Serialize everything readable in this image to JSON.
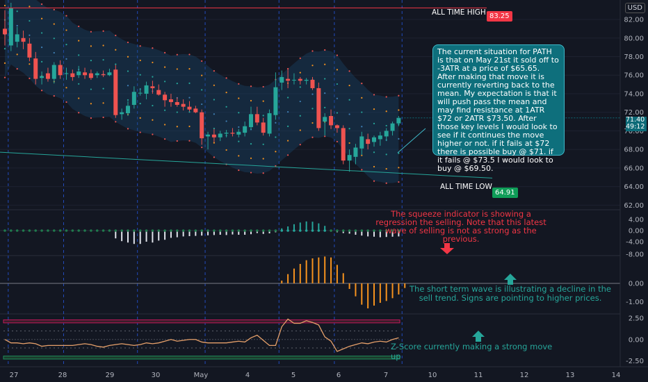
{
  "currency": "USD",
  "all_time_high": {
    "label": "ALL TIME HIGH",
    "value": "83.25"
  },
  "all_time_low": {
    "label": "ALL TIME LOW",
    "value": "64.91"
  },
  "last_price": {
    "price": "71.40",
    "countdown": "49:12"
  },
  "note": "The current situation for PATH is that on May 21st it sold off to -3ATR at a price of $65.65. After making that move it is currently reverting back to the mean. My expectation is that it will push pass the mean and may find resistance at 1ATR $72 or 2ATR $73.50. After those key levels I would look to see if it continues the move higher or not. if it fails at $72 there is possible buy @ $71. if it fails @ $73.5 I would look to buy @ $69.50.",
  "annotations": {
    "squeeze": "The squeeze indicator is showing a regression the selling. Note that this latest wave of selling is not as strong as the previous.",
    "wave": "The short term wave is illustrating a decline in the sell trend. Signs are pointing to higher prices.",
    "zscore": "Z-Score currently making a strong move up"
  },
  "colors": {
    "up": "#26a69a",
    "down": "#ef5350",
    "background": "#131722",
    "note_bg": "#0e6f7c",
    "ath": "#f23645",
    "atl": "#26a69a",
    "wave": "#f7931e",
    "zscore": "#e6a06a"
  },
  "chart_data": [
    {
      "type": "candlestick",
      "title": "",
      "x_tick_labels": [
        "27",
        "28",
        "29",
        "30",
        "May",
        "4",
        "5",
        "6",
        "7",
        "10",
        "11",
        "12",
        "13",
        "14"
      ],
      "y_ticks": [
        "62.00",
        "64.00",
        "66.00",
        "68.00",
        "70.00",
        "72.00",
        "74.00",
        "76.00",
        "78.00",
        "80.00",
        "82.00"
      ],
      "ylim": [
        61.5,
        83.8
      ],
      "horizontal_lines": [
        83.25,
        64.91
      ],
      "candles": [
        {
          "o": 81.0,
          "h": 83.0,
          "l": 79.2,
          "c": 80.4
        },
        {
          "o": 79.2,
          "h": 83.8,
          "l": 78.6,
          "c": 83.2
        },
        {
          "o": 79.6,
          "h": 81.2,
          "l": 79.0,
          "c": 80.4
        },
        {
          "o": 80.0,
          "h": 80.8,
          "l": 78.8,
          "c": 79.6
        },
        {
          "o": 79.4,
          "h": 80.0,
          "l": 77.5,
          "c": 77.9
        },
        {
          "o": 77.8,
          "h": 78.5,
          "l": 75.0,
          "c": 75.6
        },
        {
          "o": 75.7,
          "h": 76.4,
          "l": 75.0,
          "c": 75.9
        },
        {
          "o": 76.2,
          "h": 76.8,
          "l": 75.3,
          "c": 75.6
        },
        {
          "o": 75.6,
          "h": 77.4,
          "l": 75.1,
          "c": 77.1
        },
        {
          "o": 77.1,
          "h": 77.6,
          "l": 75.6,
          "c": 76.0
        },
        {
          "o": 76.2,
          "h": 76.8,
          "l": 75.5,
          "c": 76.2
        },
        {
          "o": 76.2,
          "h": 76.6,
          "l": 75.4,
          "c": 75.8
        },
        {
          "o": 76.0,
          "h": 77.0,
          "l": 75.7,
          "c": 76.4
        },
        {
          "o": 76.3,
          "h": 76.8,
          "l": 75.6,
          "c": 76.0
        },
        {
          "o": 76.2,
          "h": 76.6,
          "l": 75.5,
          "c": 75.7
        },
        {
          "o": 76.0,
          "h": 76.4,
          "l": 75.7,
          "c": 76.2
        },
        {
          "o": 76.1,
          "h": 76.5,
          "l": 75.8,
          "c": 76.0
        },
        {
          "o": 76.0,
          "h": 76.7,
          "l": 75.9,
          "c": 76.3
        },
        {
          "o": 76.6,
          "h": 77.1,
          "l": 71.4,
          "c": 71.7
        },
        {
          "o": 71.8,
          "h": 72.4,
          "l": 71.2,
          "c": 72.0
        },
        {
          "o": 71.9,
          "h": 73.2,
          "l": 71.6,
          "c": 72.7
        },
        {
          "o": 72.8,
          "h": 74.8,
          "l": 72.4,
          "c": 74.2
        },
        {
          "o": 74.1,
          "h": 74.6,
          "l": 73.8,
          "c": 74.1
        },
        {
          "o": 74.0,
          "h": 75.3,
          "l": 73.4,
          "c": 74.9
        },
        {
          "o": 74.8,
          "h": 75.4,
          "l": 74.0,
          "c": 74.6
        },
        {
          "o": 74.4,
          "h": 75.0,
          "l": 73.8,
          "c": 73.9
        },
        {
          "o": 73.9,
          "h": 74.2,
          "l": 72.6,
          "c": 73.3
        },
        {
          "o": 73.4,
          "h": 74.0,
          "l": 72.6,
          "c": 73.1
        },
        {
          "o": 73.1,
          "h": 73.6,
          "l": 72.6,
          "c": 72.8
        },
        {
          "o": 72.9,
          "h": 73.4,
          "l": 72.2,
          "c": 72.6
        },
        {
          "o": 72.6,
          "h": 73.2,
          "l": 72.1,
          "c": 72.3
        },
        {
          "o": 72.4,
          "h": 72.7,
          "l": 71.9,
          "c": 72.0
        },
        {
          "o": 72.0,
          "h": 72.3,
          "l": 68.5,
          "c": 69.2
        },
        {
          "o": 69.4,
          "h": 69.9,
          "l": 68.0,
          "c": 69.6
        },
        {
          "o": 69.6,
          "h": 70.2,
          "l": 68.8,
          "c": 69.3
        },
        {
          "o": 69.3,
          "h": 70.0,
          "l": 68.9,
          "c": 69.7
        },
        {
          "o": 69.7,
          "h": 70.1,
          "l": 69.3,
          "c": 69.8
        },
        {
          "o": 69.8,
          "h": 70.3,
          "l": 69.4,
          "c": 69.7
        },
        {
          "o": 69.6,
          "h": 70.2,
          "l": 69.3,
          "c": 69.9
        },
        {
          "o": 69.8,
          "h": 71.0,
          "l": 69.4,
          "c": 70.5
        },
        {
          "o": 70.4,
          "h": 72.6,
          "l": 70.1,
          "c": 71.8
        },
        {
          "o": 71.8,
          "h": 72.6,
          "l": 70.6,
          "c": 70.9
        },
        {
          "o": 70.9,
          "h": 71.4,
          "l": 69.5,
          "c": 69.8
        },
        {
          "o": 69.7,
          "h": 72.3,
          "l": 69.4,
          "c": 71.9
        },
        {
          "o": 71.7,
          "h": 76.3,
          "l": 71.2,
          "c": 74.7
        },
        {
          "o": 75.2,
          "h": 76.5,
          "l": 74.4,
          "c": 75.8
        },
        {
          "o": 75.6,
          "h": 76.6,
          "l": 74.6,
          "c": 75.4
        },
        {
          "o": 75.5,
          "h": 76.2,
          "l": 75.0,
          "c": 75.5
        },
        {
          "o": 75.6,
          "h": 75.8,
          "l": 75.0,
          "c": 75.4
        },
        {
          "o": 75.4,
          "h": 75.7,
          "l": 75.0,
          "c": 75.5
        },
        {
          "o": 75.5,
          "h": 75.8,
          "l": 74.4,
          "c": 74.6
        },
        {
          "o": 74.6,
          "h": 75.2,
          "l": 70.0,
          "c": 70.3
        },
        {
          "o": 71.0,
          "h": 71.9,
          "l": 69.5,
          "c": 71.5
        },
        {
          "o": 71.6,
          "h": 72.3,
          "l": 70.2,
          "c": 70.6
        },
        {
          "o": 70.6,
          "h": 70.7,
          "l": 69.8,
          "c": 70.3
        },
        {
          "o": 70.3,
          "h": 70.6,
          "l": 66.4,
          "c": 66.8
        },
        {
          "o": 66.8,
          "h": 68.0,
          "l": 65.6,
          "c": 67.4
        },
        {
          "o": 67.2,
          "h": 68.6,
          "l": 66.4,
          "c": 68.2
        },
        {
          "o": 68.1,
          "h": 69.9,
          "l": 67.4,
          "c": 69.4
        },
        {
          "o": 69.1,
          "h": 69.7,
          "l": 68.0,
          "c": 68.6
        },
        {
          "o": 68.8,
          "h": 69.5,
          "l": 68.3,
          "c": 69.3
        },
        {
          "o": 69.1,
          "h": 69.9,
          "l": 68.4,
          "c": 69.5
        },
        {
          "o": 69.4,
          "h": 70.3,
          "l": 68.9,
          "c": 70.0
        },
        {
          "o": 70.0,
          "h": 71.0,
          "l": 69.5,
          "c": 70.8
        },
        {
          "o": 70.8,
          "h": 71.6,
          "l": 70.5,
          "c": 71.4
        }
      ]
    },
    {
      "type": "bar",
      "title": "",
      "y_ticks": [
        "-4.00",
        "0.00",
        "4.00"
      ],
      "ylim": [
        -7.5,
        7.5
      ],
      "values": [
        0.0,
        0.0,
        0.0,
        0.0,
        0.0,
        0.0,
        0.0,
        0.0,
        0.0,
        0.0,
        0.0,
        0.0,
        0.0,
        0.0,
        0.0,
        0.0,
        0.0,
        0.0,
        -2.8,
        -3.8,
        -4.3,
        -4.8,
        -4.8,
        -4.0,
        -4.3,
        -3.6,
        -3.3,
        -2.6,
        -2.4,
        -2.1,
        -2.0,
        -1.9,
        -1.8,
        -1.7,
        -1.6,
        -1.5,
        -1.6,
        -1.4,
        -1.5,
        -1.5,
        -1.3,
        -0.9,
        -1.2,
        -1.0,
        -0.6,
        0.8,
        1.5,
        2.3,
        2.9,
        3.3,
        3.2,
        2.6,
        1.7,
        -0.4,
        -0.6,
        -0.9,
        -1.1,
        -1.5,
        -1.8,
        -2.1,
        -2.2,
        -2.4,
        -2.3,
        -2.2,
        -2.1
      ]
    },
    {
      "type": "bar",
      "title": "",
      "y_ticks": [
        "-1.00",
        "0.00"
      ],
      "ylim": [
        -1.5,
        1.5
      ],
      "values": [
        0,
        0,
        0,
        0,
        0,
        0,
        0,
        0,
        0,
        0,
        0,
        0,
        0,
        0,
        0,
        0,
        0,
        0,
        0,
        0,
        0,
        0,
        0,
        0,
        0,
        0,
        0,
        0,
        0,
        0,
        0,
        0,
        0,
        0,
        0,
        0,
        0,
        0,
        0,
        0,
        0,
        0,
        0,
        0,
        0,
        0.15,
        0.5,
        0.8,
        1.05,
        1.25,
        1.35,
        1.4,
        1.45,
        1.4,
        1.0,
        0.55,
        -0.3,
        -0.7,
        -1.15,
        -1.35,
        -1.2,
        -1.05,
        -0.95,
        -0.8,
        -0.6,
        -0.25
      ]
    },
    {
      "type": "line",
      "title": "",
      "y_ticks": [
        "2.50",
        "0.00",
        "-2.50"
      ],
      "ylim": [
        -3.2,
        3.0
      ],
      "bands": [
        2.0,
        1.0,
        -1.0,
        -2.0
      ],
      "values": [
        0.0,
        -0.4,
        -0.4,
        -0.5,
        -0.4,
        -0.5,
        -0.8,
        -0.7,
        -0.7,
        -0.7,
        -0.7,
        -0.7,
        -0.6,
        -0.5,
        -0.6,
        -0.8,
        -0.9,
        -0.7,
        -0.6,
        -0.5,
        -0.6,
        -0.7,
        -0.6,
        -0.4,
        -0.5,
        -0.4,
        -0.2,
        0.0,
        -0.2,
        -0.1,
        0.0,
        0.0,
        -0.3,
        -0.4,
        -0.4,
        -0.4,
        -0.4,
        -0.3,
        -0.2,
        -0.3,
        0.2,
        0.5,
        -0.1,
        -0.7,
        -0.7,
        1.5,
        2.4,
        1.9,
        1.9,
        2.2,
        2.0,
        1.7,
        0.3,
        -0.2,
        -1.4,
        -1.1,
        -0.8,
        -0.6,
        -0.4,
        -0.5,
        -0.3,
        -0.2,
        -0.3,
        0.0,
        0.2
      ]
    }
  ]
}
